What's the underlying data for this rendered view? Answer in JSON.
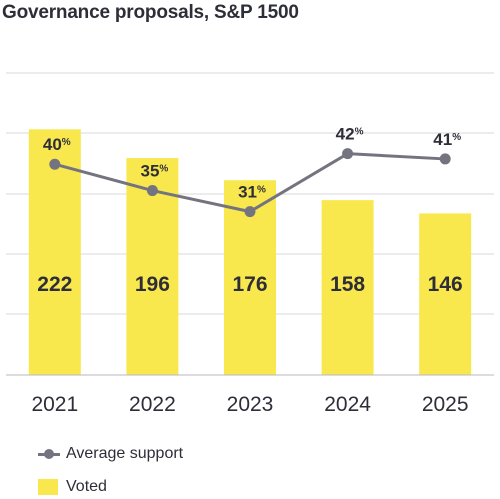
{
  "chart_data": {
    "type": "bar",
    "title": "Governance proposals, S&P 1500",
    "categories": [
      "2021",
      "2022",
      "2023",
      "2024",
      "2025"
    ],
    "series": [
      {
        "name": "Voted",
        "kind": "bar",
        "values": [
          222,
          196,
          176,
          158,
          146
        ],
        "color": "#f8e84d"
      },
      {
        "name": "Average support",
        "kind": "line",
        "values": [
          40,
          35,
          31,
          42,
          41
        ],
        "unit": "%",
        "color": "#747480"
      }
    ],
    "bar_ylim": [
      0,
      300
    ],
    "line_ylim": [
      0,
      63
    ],
    "grid": true,
    "legend_placement": "bottom-left",
    "label_color": "#2e2e38"
  }
}
